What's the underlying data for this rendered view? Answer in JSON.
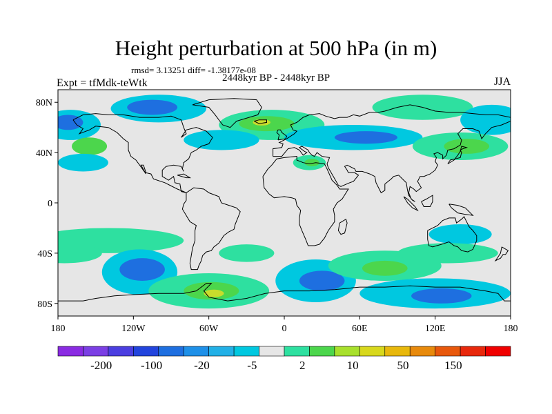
{
  "header": {
    "title": "Height perturbation at 500 hPa (in m)",
    "stats": "rmsd= 3.13251 diff= -1.38177e-08",
    "period": "2448kyr BP - 2448kyr BP",
    "experiment": "Expt = tfMdk-teWtk",
    "season": "JJA"
  },
  "map": {
    "projection": "cylindrical equidistant",
    "lon_range": [
      -180,
      180
    ],
    "lat_range": [
      -90,
      90
    ],
    "lat_tick_labels": [
      {
        "lat": 80,
        "text": "80N"
      },
      {
        "lat": 40,
        "text": "40N"
      },
      {
        "lat": 0,
        "text": "0"
      },
      {
        "lat": -40,
        "text": "40S"
      },
      {
        "lat": -80,
        "text": "80S"
      }
    ],
    "lon_tick_labels": [
      {
        "lon": -180,
        "text": "180"
      },
      {
        "lon": -120,
        "text": "120W"
      },
      {
        "lon": -60,
        "text": "60W"
      },
      {
        "lon": 0,
        "text": "0"
      },
      {
        "lon": 60,
        "text": "60E"
      },
      {
        "lon": 120,
        "text": "120E"
      },
      {
        "lon": 180,
        "text": "180"
      }
    ],
    "background_color": "#e6e6e6",
    "features": [
      {
        "type": "blob",
        "name": "arctic-canada-low",
        "lon": -100,
        "lat": 75,
        "rx": 38,
        "ry": 11,
        "level": "-5"
      },
      {
        "type": "blob",
        "name": "arctic-canada-low-core",
        "lon": -105,
        "lat": 76,
        "rx": 20,
        "ry": 6,
        "level": "-20"
      },
      {
        "type": "blob",
        "name": "north-pacific-low",
        "lon": -170,
        "lat": 62,
        "rx": 24,
        "ry": 12,
        "level": "-5"
      },
      {
        "type": "blob",
        "name": "north-pacific-low-core",
        "lon": -172,
        "lat": 64,
        "rx": 12,
        "ry": 6,
        "level": "-20"
      },
      {
        "type": "blob",
        "name": "greenland-atlantic-high",
        "lon": -10,
        "lat": 62,
        "rx": 42,
        "ry": 12,
        "level": "2"
      },
      {
        "type": "blob",
        "name": "greenland-atlantic-high-core",
        "lon": -14,
        "lat": 63,
        "rx": 22,
        "ry": 6,
        "level": "10"
      },
      {
        "type": "blob",
        "name": "greenland-atlantic-high-peak",
        "lon": -18,
        "lat": 64,
        "rx": 7,
        "ry": 2.5,
        "level": "50"
      },
      {
        "type": "blob",
        "name": "north-atlantic-low",
        "lon": -50,
        "lat": 50,
        "rx": 30,
        "ry": 8,
        "level": "-5"
      },
      {
        "type": "blob",
        "name": "eurasia-low",
        "lon": 55,
        "lat": 52,
        "rx": 55,
        "ry": 10,
        "level": "-5"
      },
      {
        "type": "blob",
        "name": "eurasia-low-core",
        "lon": 65,
        "lat": 52,
        "rx": 25,
        "ry": 5,
        "level": "-20"
      },
      {
        "type": "blob",
        "name": "siberia-high",
        "lon": 110,
        "lat": 76,
        "rx": 40,
        "ry": 10,
        "level": "2"
      },
      {
        "type": "blob",
        "name": "kamchatka-low",
        "lon": 165,
        "lat": 66,
        "rx": 25,
        "ry": 12,
        "level": "-5"
      },
      {
        "type": "blob",
        "name": "east-asia-high",
        "lon": 140,
        "lat": 45,
        "rx": 38,
        "ry": 11,
        "level": "2"
      },
      {
        "type": "blob",
        "name": "east-asia-high-core",
        "lon": 145,
        "lat": 45,
        "rx": 18,
        "ry": 6,
        "level": "10"
      },
      {
        "type": "blob",
        "name": "north-pacific-high",
        "lon": -155,
        "lat": 45,
        "rx": 14,
        "ry": 7,
        "level": "10"
      },
      {
        "type": "blob",
        "name": "east-pacific-low",
        "lon": -160,
        "lat": 32,
        "rx": 20,
        "ry": 7,
        "level": "-5"
      },
      {
        "type": "blob",
        "name": "mediterranean-high",
        "lon": 20,
        "lat": 32,
        "rx": 13,
        "ry": 6,
        "level": "2"
      },
      {
        "type": "blob",
        "name": "mediterranean-high-core",
        "lon": 22,
        "lat": 32,
        "rx": 6,
        "ry": 3,
        "level": "10"
      },
      {
        "type": "blob",
        "name": "south-pacific-belt-high",
        "lon": -140,
        "lat": -30,
        "rx": 60,
        "ry": 10,
        "level": "2"
      },
      {
        "type": "blob",
        "name": "south-pacific-belt-high-2",
        "lon": -175,
        "lat": -40,
        "rx": 30,
        "ry": 8,
        "level": "2"
      },
      {
        "type": "blob",
        "name": "south-pacific-low",
        "lon": -115,
        "lat": -55,
        "rx": 30,
        "ry": 18,
        "level": "-5"
      },
      {
        "type": "blob",
        "name": "south-pacific-low-core",
        "lon": -113,
        "lat": -53,
        "rx": 18,
        "ry": 9,
        "level": "-20"
      },
      {
        "type": "blob",
        "name": "south-atlantic-high",
        "lon": -30,
        "lat": -40,
        "rx": 22,
        "ry": 7,
        "level": "2"
      },
      {
        "type": "blob",
        "name": "drake-high",
        "lon": -60,
        "lat": -70,
        "rx": 48,
        "ry": 14,
        "level": "2"
      },
      {
        "type": "blob",
        "name": "drake-high-core",
        "lon": -58,
        "lat": -70,
        "rx": 22,
        "ry": 7,
        "level": "10"
      },
      {
        "type": "blob",
        "name": "drake-high-peak",
        "lon": -56,
        "lat": -72,
        "rx": 8,
        "ry": 3,
        "level": "50"
      },
      {
        "type": "blob",
        "name": "south-atlantic-low",
        "lon": 25,
        "lat": -62,
        "rx": 32,
        "ry": 17,
        "level": "-5"
      },
      {
        "type": "blob",
        "name": "south-atlantic-low-core",
        "lon": 30,
        "lat": -62,
        "rx": 18,
        "ry": 8,
        "level": "-20"
      },
      {
        "type": "blob",
        "name": "indian-ocean-high",
        "lon": 80,
        "lat": -50,
        "rx": 45,
        "ry": 12,
        "level": "2"
      },
      {
        "type": "blob",
        "name": "indian-ocean-high-core",
        "lon": 80,
        "lat": -52,
        "rx": 18,
        "ry": 6,
        "level": "10"
      },
      {
        "type": "blob",
        "name": "australia-low",
        "lon": 140,
        "lat": -25,
        "rx": 25,
        "ry": 8,
        "level": "-5"
      },
      {
        "type": "blob",
        "name": "australia-belt-high",
        "lon": 130,
        "lat": -40,
        "rx": 40,
        "ry": 8,
        "level": "2"
      },
      {
        "type": "blob",
        "name": "southern-ocean-low",
        "lon": 120,
        "lat": -72,
        "rx": 60,
        "ry": 12,
        "level": "-5"
      },
      {
        "type": "blob",
        "name": "southern-ocean-low-core",
        "lon": 125,
        "lat": -74,
        "rx": 24,
        "ry": 6,
        "level": "-20"
      }
    ]
  },
  "colorbar": {
    "levels": [
      "-200",
      "-100",
      "-20",
      "-5",
      "2",
      "10",
      "50",
      "150"
    ],
    "colors": [
      "#8a2be2",
      "#7b3fe4",
      "#4b3ee0",
      "#2244dd",
      "#1e6fe0",
      "#1e90e8",
      "#22b0e6",
      "#00c8e0",
      "#e6e6e6",
      "#2ee0a0",
      "#4cd64c",
      "#a8e02c",
      "#d8d81c",
      "#e8b80c",
      "#e88a0c",
      "#e8580c",
      "#e8280c",
      "#f00000"
    ],
    "label_slots": [
      1,
      3,
      5,
      7,
      9,
      11,
      13,
      15
    ],
    "level_colors": {
      "-20": "#1e6fe0",
      "-5": "#00c8e0",
      "2": "#2ee0a0",
      "10": "#4cd64c",
      "50": "#c8dc2c"
    }
  }
}
